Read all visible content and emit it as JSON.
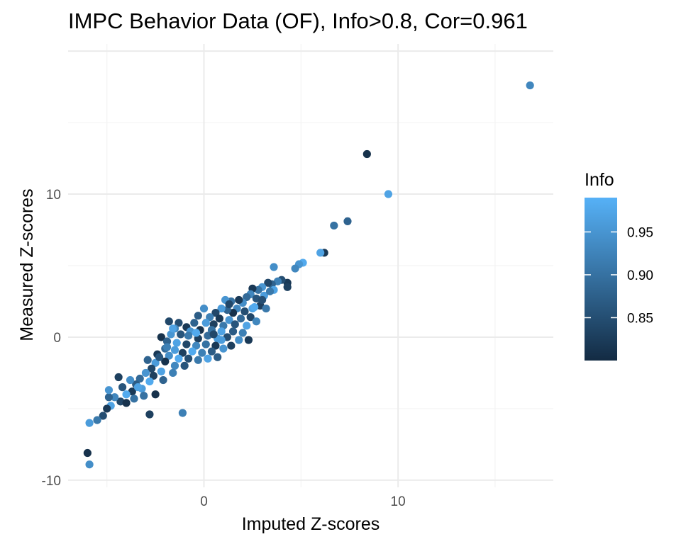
{
  "chart_data": {
    "type": "scatter",
    "title": "IMPC Behavior Data (OF), Info>0.8, Cor=0.961",
    "xlabel": "Imputed Z-scores",
    "ylabel": "Measured Z-scores",
    "xlim": [
      -7,
      18
    ],
    "ylim": [
      -10.5,
      20.5
    ],
    "x_ticks": [
      0,
      10
    ],
    "y_ticks": [
      -10,
      0,
      10
    ],
    "x_tick_labels": [
      "0",
      "10"
    ],
    "y_tick_labels": [
      "-10",
      "0",
      "10"
    ],
    "grid": true,
    "legend": {
      "title": "Info",
      "type": "colorbar",
      "position": "right",
      "range": [
        0.8,
        0.99
      ],
      "ticks": [
        0.85,
        0.9,
        0.95
      ],
      "tick_labels": [
        "0.85",
        "0.90",
        "0.95"
      ],
      "low_color": "#132b43",
      "high_color": "#56b1f7"
    },
    "points": [
      {
        "x": 16.8,
        "y": 17.6,
        "info": 0.93
      },
      {
        "x": 8.4,
        "y": 12.8,
        "info": 0.81
      },
      {
        "x": 9.5,
        "y": 10.0,
        "info": 0.97
      },
      {
        "x": 7.4,
        "y": 8.1,
        "info": 0.88
      },
      {
        "x": 6.7,
        "y": 7.8,
        "info": 0.9
      },
      {
        "x": 6.2,
        "y": 5.9,
        "info": 0.82
      },
      {
        "x": 6.0,
        "y": 5.9,
        "info": 0.97
      },
      {
        "x": 5.1,
        "y": 5.2,
        "info": 0.98
      },
      {
        "x": 4.9,
        "y": 5.1,
        "info": 0.95
      },
      {
        "x": 4.7,
        "y": 4.8,
        "info": 0.93
      },
      {
        "x": 3.6,
        "y": 4.9,
        "info": 0.94
      },
      {
        "x": 4.3,
        "y": 3.8,
        "info": 0.82
      },
      {
        "x": 4.0,
        "y": 4.0,
        "info": 0.85
      },
      {
        "x": 4.3,
        "y": 3.5,
        "info": 0.83
      },
      {
        "x": 3.8,
        "y": 3.9,
        "info": 0.92
      },
      {
        "x": 3.5,
        "y": 3.7,
        "info": 0.88
      },
      {
        "x": 3.6,
        "y": 3.3,
        "info": 0.97
      },
      {
        "x": 3.3,
        "y": 3.8,
        "info": 0.84
      },
      {
        "x": 3.0,
        "y": 3.5,
        "info": 0.95
      },
      {
        "x": 2.8,
        "y": 3.3,
        "info": 0.9
      },
      {
        "x": 2.5,
        "y": 3.4,
        "info": 0.82
      },
      {
        "x": 2.4,
        "y": 3.0,
        "info": 0.93
      },
      {
        "x": 3.1,
        "y": 2.9,
        "info": 0.96
      },
      {
        "x": 2.7,
        "y": 2.7,
        "info": 0.86
      },
      {
        "x": 2.2,
        "y": 2.8,
        "info": 0.89
      },
      {
        "x": 2.0,
        "y": 2.4,
        "info": 0.94
      },
      {
        "x": 1.8,
        "y": 2.6,
        "info": 0.82
      },
      {
        "x": 1.4,
        "y": 2.5,
        "info": 0.9
      },
      {
        "x": 1.1,
        "y": 2.6,
        "info": 0.95
      },
      {
        "x": 2.9,
        "y": 2.2,
        "info": 0.83
      },
      {
        "x": 3.2,
        "y": 2.0,
        "info": 0.91
      },
      {
        "x": 2.5,
        "y": 2.0,
        "info": 0.97
      },
      {
        "x": 2.1,
        "y": 1.8,
        "info": 0.85
      },
      {
        "x": 1.7,
        "y": 2.0,
        "info": 0.93
      },
      {
        "x": 1.5,
        "y": 1.7,
        "info": 0.81
      },
      {
        "x": 1.2,
        "y": 1.9,
        "info": 0.88
      },
      {
        "x": 0.9,
        "y": 2.0,
        "info": 0.96
      },
      {
        "x": 0.6,
        "y": 1.7,
        "info": 0.84
      },
      {
        "x": 0.0,
        "y": 2.0,
        "info": 0.94
      },
      {
        "x": -0.3,
        "y": 1.5,
        "info": 0.87
      },
      {
        "x": 0.3,
        "y": 1.4,
        "info": 0.92
      },
      {
        "x": 0.8,
        "y": 1.3,
        "info": 0.82
      },
      {
        "x": 1.3,
        "y": 1.2,
        "info": 0.95
      },
      {
        "x": 1.9,
        "y": 1.3,
        "info": 0.89
      },
      {
        "x": 2.4,
        "y": 1.4,
        "info": 0.84
      },
      {
        "x": 2.7,
        "y": 1.1,
        "info": 0.93
      },
      {
        "x": 2.2,
        "y": 0.8,
        "info": 0.97
      },
      {
        "x": 1.6,
        "y": 0.9,
        "info": 0.86
      },
      {
        "x": 1.0,
        "y": 0.8,
        "info": 0.91
      },
      {
        "x": 0.5,
        "y": 0.9,
        "info": 0.83
      },
      {
        "x": 0.1,
        "y": 1.0,
        "info": 0.96
      },
      {
        "x": -0.5,
        "y": 1.0,
        "info": 0.88
      },
      {
        "x": -0.9,
        "y": 0.7,
        "info": 0.82
      },
      {
        "x": -1.3,
        "y": 1.0,
        "info": 0.85
      },
      {
        "x": -1.8,
        "y": 1.1,
        "info": 0.84
      },
      {
        "x": -1.5,
        "y": 0.6,
        "info": 0.93
      },
      {
        "x": -0.7,
        "y": 0.4,
        "info": 0.95
      },
      {
        "x": -0.2,
        "y": 0.5,
        "info": 0.81
      },
      {
        "x": 0.4,
        "y": 0.5,
        "info": 0.9
      },
      {
        "x": 0.9,
        "y": 0.4,
        "info": 0.97
      },
      {
        "x": 1.5,
        "y": 0.4,
        "info": 0.87
      },
      {
        "x": 2.0,
        "y": 0.3,
        "info": 0.92
      },
      {
        "x": 2.3,
        "y": -0.2,
        "info": 0.82
      },
      {
        "x": 1.8,
        "y": -0.2,
        "info": 0.94
      },
      {
        "x": 1.2,
        "y": 0.0,
        "info": 0.85
      },
      {
        "x": 0.7,
        "y": -0.1,
        "info": 0.96
      },
      {
        "x": 0.2,
        "y": 0.1,
        "info": 0.89
      },
      {
        "x": -0.3,
        "y": -0.1,
        "info": 0.83
      },
      {
        "x": -0.8,
        "y": 0.1,
        "info": 0.91
      },
      {
        "x": -1.2,
        "y": 0.2,
        "info": 0.86
      },
      {
        "x": -1.7,
        "y": 0.2,
        "info": 0.95
      },
      {
        "x": -2.2,
        "y": 0.0,
        "info": 0.81
      },
      {
        "x": -1.9,
        "y": -0.3,
        "info": 0.88
      },
      {
        "x": -1.4,
        "y": -0.4,
        "info": 0.97
      },
      {
        "x": -0.9,
        "y": -0.5,
        "info": 0.84
      },
      {
        "x": -0.4,
        "y": -0.6,
        "info": 0.93
      },
      {
        "x": 0.1,
        "y": -0.5,
        "info": 0.9
      },
      {
        "x": 0.6,
        "y": -0.6,
        "info": 0.82
      },
      {
        "x": 1.0,
        "y": -0.8,
        "info": 0.95
      },
      {
        "x": 0.4,
        "y": -1.0,
        "info": 0.87
      },
      {
        "x": -0.1,
        "y": -1.1,
        "info": 0.92
      },
      {
        "x": -0.6,
        "y": -1.0,
        "info": 0.98
      },
      {
        "x": -1.1,
        "y": -1.1,
        "info": 0.83
      },
      {
        "x": -1.5,
        "y": -0.9,
        "info": 0.96
      },
      {
        "x": -2.0,
        "y": -0.8,
        "info": 0.89
      },
      {
        "x": -2.4,
        "y": -1.2,
        "info": 0.82
      },
      {
        "x": -1.8,
        "y": -1.3,
        "info": 0.94
      },
      {
        "x": -1.3,
        "y": -1.5,
        "info": 0.98
      },
      {
        "x": -0.8,
        "y": -1.5,
        "info": 0.85
      },
      {
        "x": -0.3,
        "y": -1.6,
        "info": 0.91
      },
      {
        "x": 0.2,
        "y": -1.5,
        "info": 0.97
      },
      {
        "x": -1.0,
        "y": -2.0,
        "info": 0.86
      },
      {
        "x": -1.5,
        "y": -2.0,
        "info": 0.93
      },
      {
        "x": -2.0,
        "y": -1.7,
        "info": 0.81
      },
      {
        "x": -2.5,
        "y": -1.8,
        "info": 0.96
      },
      {
        "x": -2.9,
        "y": -1.6,
        "info": 0.88
      },
      {
        "x": -2.7,
        "y": -2.2,
        "info": 0.84
      },
      {
        "x": -2.2,
        "y": -2.4,
        "info": 0.97
      },
      {
        "x": -1.6,
        "y": -2.5,
        "info": 0.92
      },
      {
        "x": -2.6,
        "y": -2.7,
        "info": 0.83
      },
      {
        "x": -3.0,
        "y": -2.5,
        "info": 0.95
      },
      {
        "x": -3.3,
        "y": -2.9,
        "info": 0.89
      },
      {
        "x": -2.8,
        "y": -3.1,
        "info": 0.98
      },
      {
        "x": -3.5,
        "y": -3.3,
        "info": 0.87
      },
      {
        "x": -3.8,
        "y": -3.0,
        "info": 0.94
      },
      {
        "x": -3.2,
        "y": -3.6,
        "info": 0.96
      },
      {
        "x": -3.7,
        "y": -3.8,
        "info": 0.82
      },
      {
        "x": -4.2,
        "y": -3.5,
        "info": 0.86
      },
      {
        "x": -4.0,
        "y": -4.0,
        "info": 0.98
      },
      {
        "x": -3.6,
        "y": -4.3,
        "info": 0.9
      },
      {
        "x": -4.3,
        "y": -4.5,
        "info": 0.84
      },
      {
        "x": -4.6,
        "y": -4.2,
        "info": 0.93
      },
      {
        "x": -4.0,
        "y": -4.6,
        "info": 0.81
      },
      {
        "x": -4.4,
        "y": -2.8,
        "info": 0.83
      },
      {
        "x": -4.9,
        "y": -4.2,
        "info": 0.88
      },
      {
        "x": -4.8,
        "y": -4.8,
        "info": 0.97
      },
      {
        "x": -4.9,
        "y": -3.7,
        "info": 0.95
      },
      {
        "x": -5.0,
        "y": -5.0,
        "info": 0.82
      },
      {
        "x": -5.2,
        "y": -5.5,
        "info": 0.85
      },
      {
        "x": -5.5,
        "y": -5.8,
        "info": 0.91
      },
      {
        "x": -5.9,
        "y": -6.0,
        "info": 0.96
      },
      {
        "x": -6.0,
        "y": -8.1,
        "info": 0.81
      },
      {
        "x": -5.9,
        "y": -8.9,
        "info": 0.94
      },
      {
        "x": -2.8,
        "y": -5.4,
        "info": 0.83
      },
      {
        "x": -1.1,
        "y": -5.3,
        "info": 0.92
      },
      {
        "x": -2.5,
        "y": -4.0,
        "info": 0.81
      },
      {
        "x": -3.1,
        "y": -4.1,
        "info": 0.9
      },
      {
        "x": 0.7,
        "y": -1.4,
        "info": 0.87
      },
      {
        "x": 0.9,
        "y": -0.2,
        "info": 0.96
      },
      {
        "x": 1.4,
        "y": -0.6,
        "info": 0.83
      },
      {
        "x": -1.6,
        "y": 0.6,
        "info": 0.97
      },
      {
        "x": 1.3,
        "y": 2.3,
        "info": 0.84
      },
      {
        "x": 2.6,
        "y": 2.1,
        "info": 0.98
      },
      {
        "x": 3.0,
        "y": 2.6,
        "info": 0.85
      },
      {
        "x": 3.4,
        "y": 3.2,
        "info": 0.91
      },
      {
        "x": -0.4,
        "y": 0.3,
        "info": 0.98
      },
      {
        "x": 0.5,
        "y": 0.2,
        "info": 0.84
      },
      {
        "x": -1.9,
        "y": -0.7,
        "info": 0.92
      },
      {
        "x": -2.3,
        "y": -1.4,
        "info": 0.86
      },
      {
        "x": -3.4,
        "y": -3.5,
        "info": 0.97
      },
      {
        "x": -2.1,
        "y": -3.0,
        "info": 0.88
      }
    ]
  }
}
